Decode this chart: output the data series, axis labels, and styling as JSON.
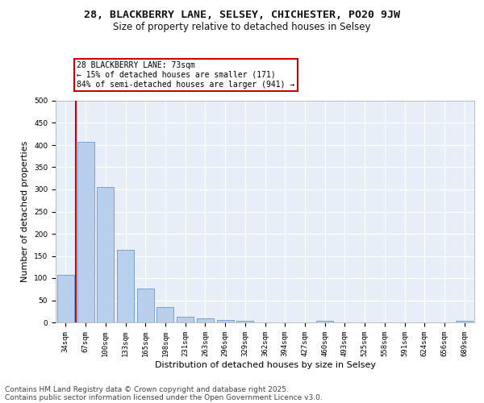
{
  "title1": "28, BLACKBERRY LANE, SELSEY, CHICHESTER, PO20 9JW",
  "title2": "Size of property relative to detached houses in Selsey",
  "xlabel": "Distribution of detached houses by size in Selsey",
  "ylabel": "Number of detached properties",
  "categories": [
    "34sqm",
    "67sqm",
    "100sqm",
    "133sqm",
    "165sqm",
    "198sqm",
    "231sqm",
    "263sqm",
    "296sqm",
    "329sqm",
    "362sqm",
    "394sqm",
    "427sqm",
    "460sqm",
    "493sqm",
    "525sqm",
    "558sqm",
    "591sqm",
    "624sqm",
    "656sqm",
    "689sqm"
  ],
  "values": [
    107,
    408,
    305,
    164,
    76,
    35,
    12,
    10,
    6,
    4,
    0,
    0,
    0,
    4,
    0,
    0,
    0,
    0,
    0,
    0,
    4
  ],
  "bar_color": "#b8d0eb",
  "bar_edge_color": "#6699cc",
  "vline_color": "#cc0000",
  "annotation_text": "28 BLACKBERRY LANE: 73sqm\n← 15% of detached houses are smaller (171)\n84% of semi-detached houses are larger (941) →",
  "annotation_box_color": "#ffffff",
  "annotation_box_edge": "#cc0000",
  "footer1": "Contains HM Land Registry data © Crown copyright and database right 2025.",
  "footer2": "Contains public sector information licensed under the Open Government Licence v3.0.",
  "background_color": "#ffffff",
  "plot_background": "#e8eef8",
  "grid_color": "#ffffff",
  "ylim": [
    0,
    500
  ],
  "yticks": [
    0,
    50,
    100,
    150,
    200,
    250,
    300,
    350,
    400,
    450,
    500
  ],
  "title1_fontsize": 9.5,
  "title2_fontsize": 8.5,
  "axis_label_fontsize": 8,
  "tick_fontsize": 6.5,
  "footer_fontsize": 6.5,
  "annotation_fontsize": 7
}
